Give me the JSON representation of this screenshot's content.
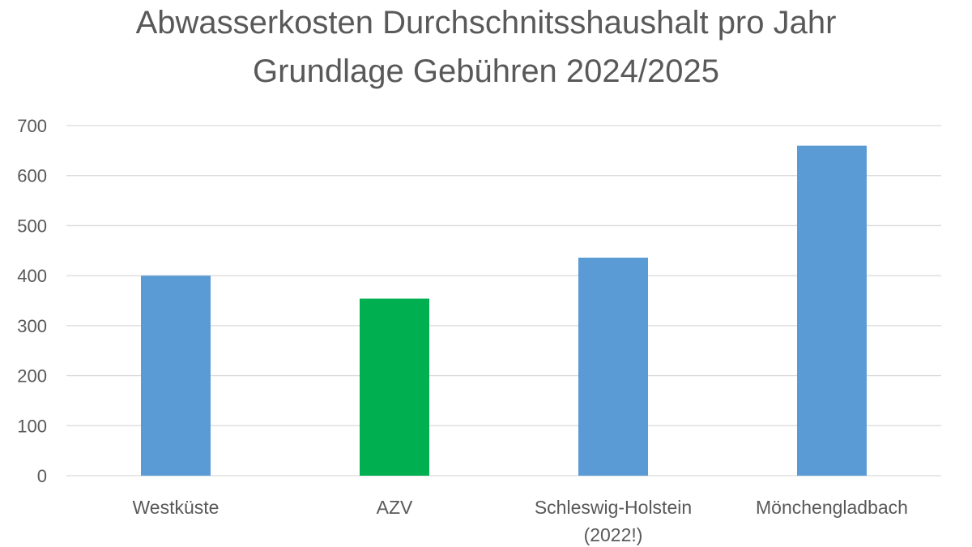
{
  "chart_data": {
    "type": "bar",
    "title_lines": [
      "Abwasserkosten Durchschnitsshaushalt pro Jahr",
      "Grundlage Gebühren 2024/2025"
    ],
    "categories": [
      [
        "Westküste"
      ],
      [
        "AZV"
      ],
      [
        "Schleswig-Holstein",
        "(2022!)"
      ],
      [
        "Mönchengladbach"
      ]
    ],
    "values": [
      400,
      354,
      436,
      660
    ],
    "bar_colors": [
      "#5B9BD5",
      "#00B050",
      "#5B9BD5",
      "#5B9BD5"
    ],
    "ylim": [
      0,
      700
    ],
    "yticks": [
      0,
      100,
      200,
      300,
      400,
      500,
      600,
      700
    ],
    "grid": true,
    "gridline_color": "#D9D9D9",
    "legend": "none",
    "xlabel": "",
    "ylabel": ""
  }
}
